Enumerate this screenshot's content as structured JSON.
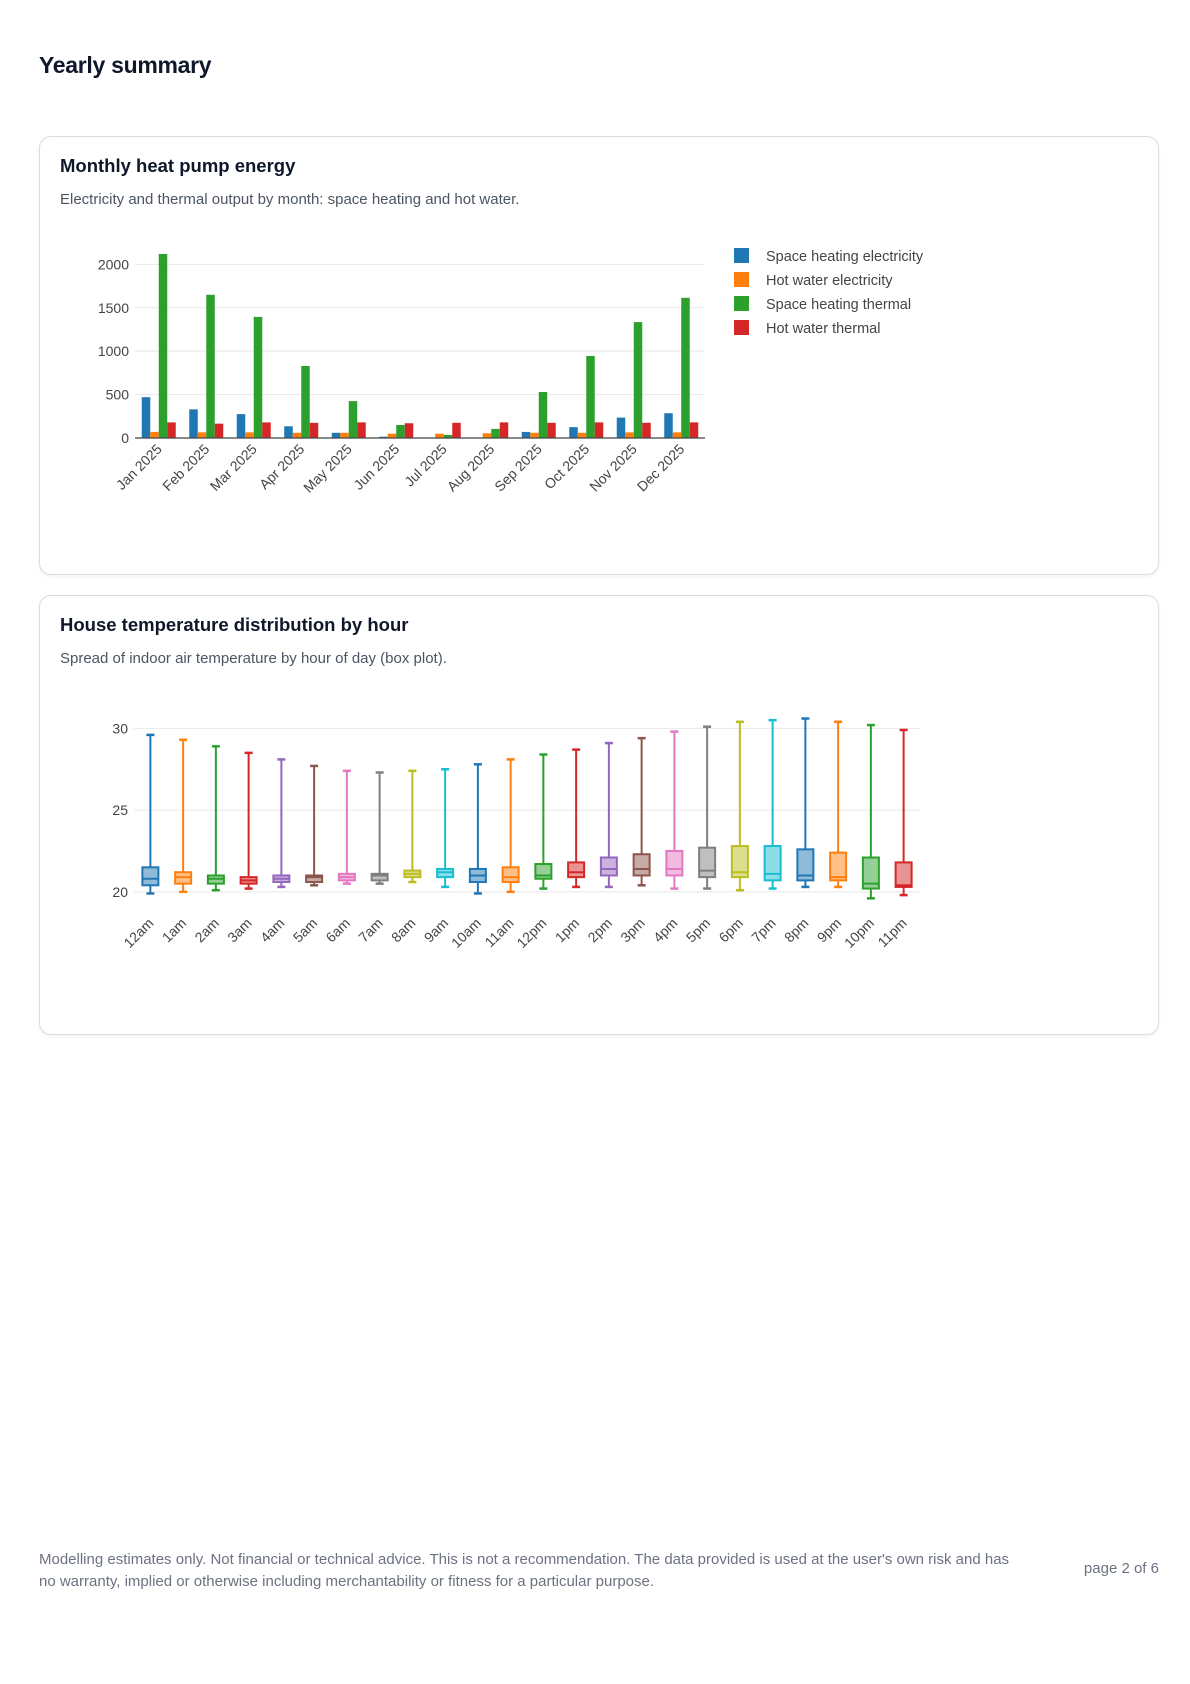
{
  "page": {
    "title": "Yearly summary",
    "footer_note": "Modelling estimates only. Not financial or technical advice. This is not a recommendation. The data provided is used at the user's own risk and has no warranty, implied or otherwise including merchantability or fitness for a particular purpose.",
    "page_number": "page 2 of 6"
  },
  "cards": [
    {
      "title": "Monthly heat pump energy",
      "subtitle": "Electricity and thermal output by month: space heating and hot water."
    },
    {
      "title": "House temperature distribution by hour",
      "subtitle": "Spread of indoor air temperature by hour of day (box plot)."
    }
  ],
  "chart_data": [
    {
      "type": "bar",
      "title": "",
      "xlabel": "",
      "ylabel": "",
      "categories": [
        "Jan 2025",
        "Feb 2025",
        "Mar 2025",
        "Apr 2025",
        "May 2025",
        "Jun 2025",
        "Jul 2025",
        "Aug 2025",
        "Sep 2025",
        "Oct 2025",
        "Nov 2025",
        "Dec 2025"
      ],
      "ylim": [
        0,
        2200
      ],
      "yticks": [
        0,
        500,
        1000,
        1500,
        2000
      ],
      "grid": true,
      "legend_position": "right",
      "series": [
        {
          "name": "Space heating electricity",
          "color": "#1f77b4",
          "values": [
            470,
            330,
            275,
            135,
            60,
            15,
            0,
            5,
            70,
            125,
            235,
            285
          ]
        },
        {
          "name": "Hot water electricity",
          "color": "#ff7f0e",
          "values": [
            70,
            65,
            65,
            60,
            60,
            50,
            50,
            55,
            60,
            60,
            65,
            65
          ]
        },
        {
          "name": "Space heating thermal",
          "color": "#2ca02c",
          "values": [
            2120,
            1650,
            1395,
            830,
            425,
            150,
            35,
            105,
            530,
            945,
            1335,
            1615
          ]
        },
        {
          "name": "Hot water thermal",
          "color": "#d62728",
          "values": [
            180,
            165,
            180,
            175,
            180,
            170,
            175,
            180,
            175,
            180,
            175,
            180
          ]
        }
      ]
    },
    {
      "type": "box",
      "title": "",
      "xlabel": "",
      "ylabel": "",
      "categories": [
        "12am",
        "1am",
        "2am",
        "3am",
        "4am",
        "5am",
        "6am",
        "7am",
        "8am",
        "9am",
        "10am",
        "11am",
        "12pm",
        "1pm",
        "2pm",
        "3pm",
        "4pm",
        "5pm",
        "6pm",
        "7pm",
        "8pm",
        "9pm",
        "10pm",
        "11pm"
      ],
      "ylim": [
        19.5,
        31.0
      ],
      "yticks": [
        20,
        25,
        30
      ],
      "grid": true,
      "legend": false,
      "colors": [
        "#1f77b4",
        "#ff7f0e",
        "#2ca02c",
        "#d62728",
        "#9467bd",
        "#8c564b",
        "#e377c2",
        "#7f7f7f",
        "#bcbd22",
        "#17becf",
        "#1f77b4",
        "#ff7f0e",
        "#2ca02c",
        "#d62728",
        "#9467bd",
        "#8c564b",
        "#e377c2",
        "#7f7f7f",
        "#bcbd22",
        "#17becf",
        "#1f77b4",
        "#ff7f0e",
        "#2ca02c",
        "#d62728"
      ],
      "boxes": [
        {
          "min": 19.9,
          "q1": 20.4,
          "median": 20.8,
          "q3": 21.5,
          "max": 29.6
        },
        {
          "min": 20.0,
          "q1": 20.5,
          "median": 20.9,
          "q3": 21.2,
          "max": 29.3
        },
        {
          "min": 20.1,
          "q1": 20.5,
          "median": 20.8,
          "q3": 21.0,
          "max": 28.9
        },
        {
          "min": 20.2,
          "q1": 20.5,
          "median": 20.7,
          "q3": 20.9,
          "max": 28.5
        },
        {
          "min": 20.3,
          "q1": 20.6,
          "median": 20.8,
          "q3": 21.0,
          "max": 28.1
        },
        {
          "min": 20.4,
          "q1": 20.6,
          "median": 20.9,
          "q3": 21.0,
          "max": 27.7
        },
        {
          "min": 20.5,
          "q1": 20.7,
          "median": 20.9,
          "q3": 21.1,
          "max": 27.4
        },
        {
          "min": 20.5,
          "q1": 20.7,
          "median": 21.0,
          "q3": 21.1,
          "max": 27.3
        },
        {
          "min": 20.6,
          "q1": 20.9,
          "median": 21.1,
          "q3": 21.3,
          "max": 27.4
        },
        {
          "min": 20.3,
          "q1": 20.9,
          "median": 21.2,
          "q3": 21.4,
          "max": 27.5
        },
        {
          "min": 19.9,
          "q1": 20.6,
          "median": 21.0,
          "q3": 21.4,
          "max": 27.8
        },
        {
          "min": 20.0,
          "q1": 20.6,
          "median": 20.9,
          "q3": 21.5,
          "max": 28.1
        },
        {
          "min": 20.2,
          "q1": 20.8,
          "median": 21.0,
          "q3": 21.7,
          "max": 28.4
        },
        {
          "min": 20.3,
          "q1": 20.9,
          "median": 21.2,
          "q3": 21.8,
          "max": 28.7
        },
        {
          "min": 20.3,
          "q1": 21.0,
          "median": 21.4,
          "q3": 22.1,
          "max": 29.1
        },
        {
          "min": 20.4,
          "q1": 21.0,
          "median": 21.4,
          "q3": 22.3,
          "max": 29.4
        },
        {
          "min": 20.2,
          "q1": 21.0,
          "median": 21.4,
          "q3": 22.5,
          "max": 29.8
        },
        {
          "min": 20.2,
          "q1": 20.9,
          "median": 21.3,
          "q3": 22.7,
          "max": 30.1
        },
        {
          "min": 20.1,
          "q1": 20.9,
          "median": 21.2,
          "q3": 22.8,
          "max": 30.4
        },
        {
          "min": 20.2,
          "q1": 20.7,
          "median": 21.1,
          "q3": 22.8,
          "max": 30.5
        },
        {
          "min": 20.3,
          "q1": 20.7,
          "median": 21.0,
          "q3": 22.6,
          "max": 30.6
        },
        {
          "min": 20.3,
          "q1": 20.7,
          "median": 20.9,
          "q3": 22.4,
          "max": 30.4
        },
        {
          "min": 19.6,
          "q1": 20.2,
          "median": 20.5,
          "q3": 22.1,
          "max": 30.2
        },
        {
          "min": 19.8,
          "q1": 20.3,
          "median": 20.4,
          "q3": 21.8,
          "max": 29.9
        }
      ]
    }
  ]
}
